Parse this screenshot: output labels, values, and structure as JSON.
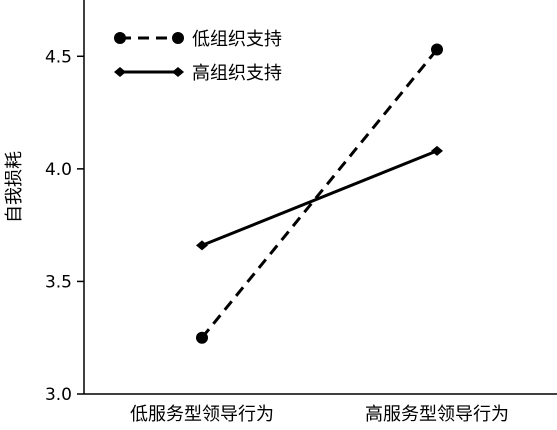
{
  "chart_data": {
    "type": "line",
    "categories": [
      "低服务型领导行为",
      "高服务型领导行为"
    ],
    "series": [
      {
        "name": "低组织支持",
        "values": [
          3.25,
          4.53
        ],
        "line_style": "dashed",
        "marker": "circle"
      },
      {
        "name": "高组织支持",
        "values": [
          3.66,
          4.08
        ],
        "line_style": "solid",
        "marker": "diamond"
      }
    ],
    "title": "",
    "xlabel": "",
    "ylabel": "自我损耗",
    "ylim": [
      3.0,
      4.75
    ],
    "yticks": [
      "3.0",
      "3.5",
      "4.0",
      "4.5"
    ],
    "grid": false,
    "legend_position": "top-left",
    "color": "#000000"
  }
}
